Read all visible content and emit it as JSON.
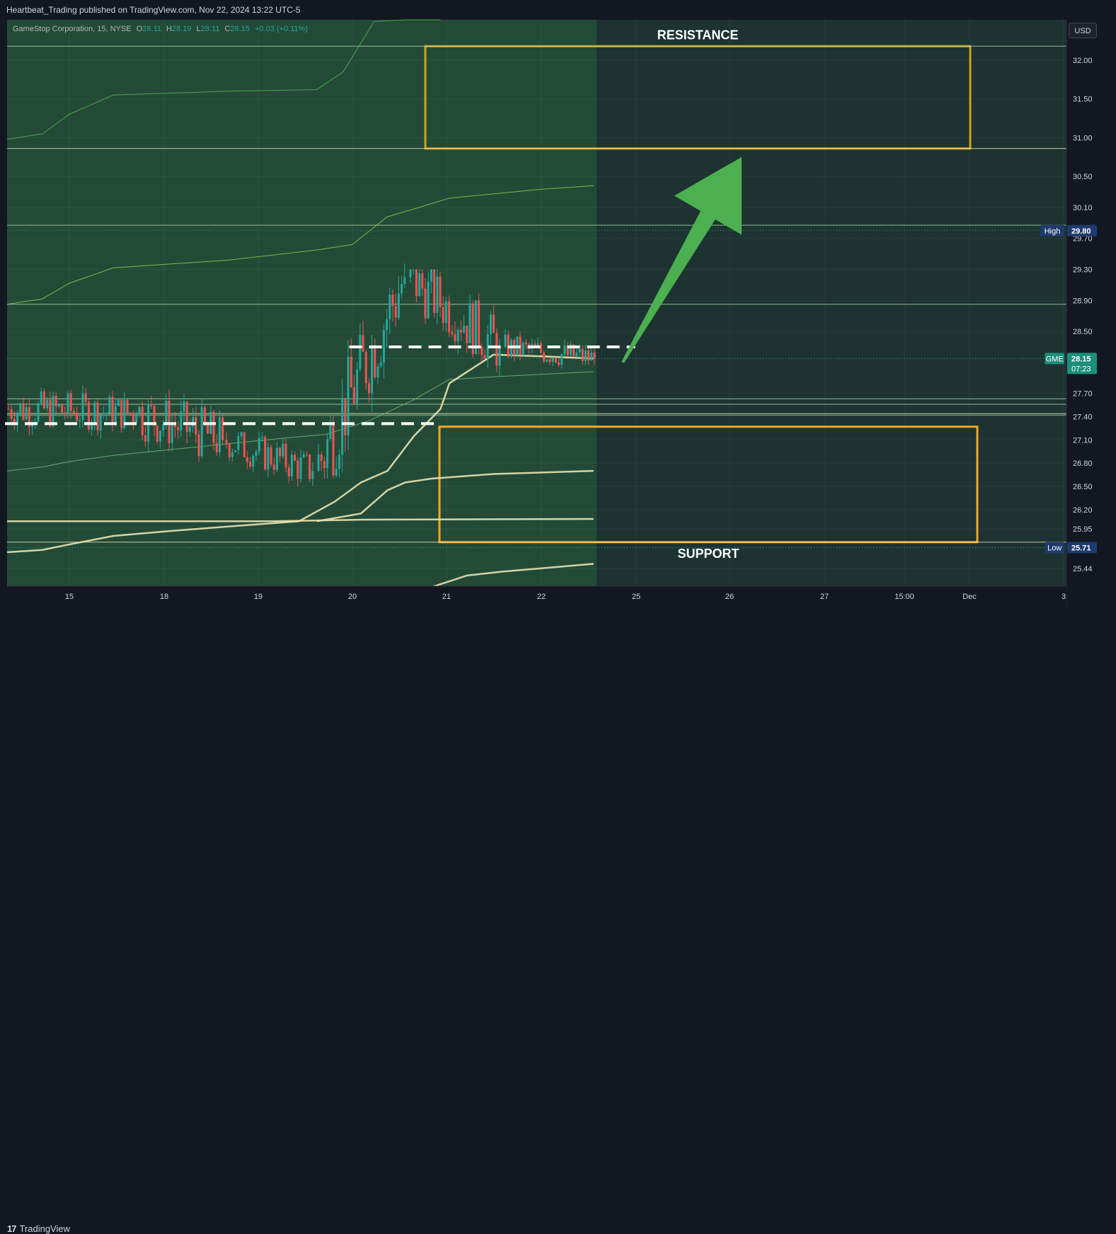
{
  "header": {
    "publisher": "Heartbeat_Trading published on TradingView.com, Nov 22, 2024 13:22 UTC-5"
  },
  "legend": {
    "symbol": "GameStop Corporation, 15, NYSE",
    "open_label": "O",
    "open": "28.11",
    "high_label": "H",
    "high": "28.19",
    "low_label": "L",
    "low": "28.11",
    "close_label": "C",
    "close": "28.15",
    "change": "+0.03 (+0.11%)"
  },
  "currency": "USD",
  "footer": {
    "brand_mark": "17",
    "brand": "TradingView"
  },
  "colors": {
    "background": "#131722",
    "bullish": "#26a69a",
    "bearish": "#ef5350",
    "zone_border": "#f5a623",
    "resistance_border": "#d4a017",
    "arrow": "#4caf50",
    "vwap": "#e8e3b0"
  },
  "chart_data": {
    "type": "candlestick",
    "symbol": "GME",
    "interval": "15",
    "ylim": [
      25.1,
      32.6
    ],
    "y_ticks": [
      "32.00",
      "31.50",
      "31.00",
      "30.50",
      "30.10",
      "29.70",
      "29.30",
      "28.90",
      "28.50",
      "27.70",
      "27.40",
      "27.10",
      "26.80",
      "26.50",
      "26.20",
      "25.95",
      "25.44"
    ],
    "x_ticks": [
      "15",
      "18",
      "19",
      "20",
      "21",
      "22",
      "25",
      "26",
      "27",
      "15:00",
      "Dec",
      "3"
    ],
    "last_price": {
      "label": "GME",
      "value": "28.15",
      "countdown": "07:23"
    },
    "high": {
      "label": "High",
      "value": "29.80"
    },
    "low": {
      "label": "Low",
      "value": "25.71"
    },
    "annotations": [
      {
        "text": "RESISTANCE",
        "zone": [
          30.86,
          32.18
        ]
      },
      {
        "text": "SUPPORT",
        "zone": [
          25.78,
          27.27
        ]
      }
    ],
    "arrow": {
      "from": {
        "session": 6.85,
        "price": 28.1
      },
      "to": {
        "session": 7.95,
        "price": 30.75
      }
    },
    "horizontal_levels": [
      32.18,
      30.86,
      29.87,
      28.85,
      27.63,
      27.56,
      27.44,
      27.42,
      25.78
    ],
    "dashed_levels": [
      {
        "price": 28.3,
        "from": 3.65,
        "to": 6.68
      },
      {
        "price": 27.31,
        "from": 0.0,
        "to": 4.57
      }
    ],
    "vwap_bands": [
      [
        [
          0,
          30.98
        ],
        [
          0.4,
          31.05
        ],
        [
          0.7,
          31.3
        ],
        [
          1.2,
          31.55
        ],
        [
          2.5,
          31.6
        ],
        [
          3.5,
          31.62
        ],
        [
          3.8,
          31.85
        ],
        [
          4.15,
          32.5
        ],
        [
          4.5,
          32.95
        ],
        [
          4.9,
          33.3
        ]
      ],
      [
        [
          0,
          28.85
        ],
        [
          0.4,
          28.92
        ],
        [
          0.7,
          29.12
        ],
        [
          1.2,
          29.32
        ],
        [
          2.5,
          29.42
        ],
        [
          3.5,
          29.55
        ],
        [
          3.9,
          29.62
        ],
        [
          4.3,
          29.98
        ],
        [
          4.6,
          30.08
        ],
        [
          5.0,
          30.22
        ],
        [
          6.0,
          30.33
        ],
        [
          6.63,
          30.38
        ]
      ],
      [
        [
          0,
          26.7
        ],
        [
          0.4,
          26.75
        ],
        [
          0.7,
          26.82
        ],
        [
          1.2,
          26.9
        ],
        [
          2.5,
          27.05
        ],
        [
          3.2,
          27.13
        ],
        [
          3.6,
          27.17
        ],
        [
          4.1,
          27.35
        ],
        [
          4.6,
          27.62
        ],
        [
          5.0,
          27.88
        ],
        [
          5.6,
          27.92
        ],
        [
          6.63,
          27.98
        ]
      ],
      [
        [
          0,
          25.65
        ],
        [
          0.4,
          25.68
        ],
        [
          0.7,
          25.75
        ],
        [
          1.2,
          25.86
        ],
        [
          1.8,
          25.92
        ],
        [
          2.6,
          25.99
        ],
        [
          3.3,
          26.05
        ],
        [
          3.7,
          26.3
        ],
        [
          4.0,
          26.55
        ],
        [
          4.3,
          26.7
        ],
        [
          4.6,
          27.15
        ],
        [
          4.9,
          27.5
        ],
        [
          5.0,
          27.83
        ],
        [
          5.5,
          28.2
        ],
        [
          6.0,
          28.18
        ],
        [
          6.63,
          28.15
        ]
      ],
      [
        [
          0,
          26.05
        ],
        [
          3.0,
          26.05
        ],
        [
          4.0,
          26.07
        ],
        [
          6.63,
          26.08
        ]
      ],
      [
        [
          3.5,
          26.05
        ],
        [
          4.0,
          26.15
        ],
        [
          4.3,
          26.45
        ],
        [
          4.5,
          26.55
        ],
        [
          4.8,
          26.6
        ],
        [
          5.5,
          26.66
        ],
        [
          6.63,
          26.7
        ]
      ],
      [
        [
          4.5,
          25.0
        ],
        [
          4.8,
          25.2
        ],
        [
          5.2,
          25.35
        ],
        [
          5.6,
          25.4
        ],
        [
          6.63,
          25.5
        ]
      ]
    ],
    "sessions_ohlc": [
      {
        "label": "15",
        "o": 27.5,
        "h": 28.4,
        "l": 27.0,
        "c": 27.45
      },
      {
        "label": "18",
        "o": 27.45,
        "h": 27.9,
        "l": 25.95,
        "c": 27.1
      },
      {
        "label": "19",
        "o": 27.1,
        "h": 27.2,
        "l": 25.85,
        "c": 26.7
      },
      {
        "label": "20",
        "o": 26.7,
        "h": 29.8,
        "l": 26.6,
        "c": 29.2
      },
      {
        "label": "21",
        "o": 29.2,
        "h": 29.3,
        "l": 27.2,
        "c": 28.3
      },
      {
        "label": "22",
        "o": 28.3,
        "h": 28.55,
        "l": 27.55,
        "c": 28.15
      }
    ]
  }
}
